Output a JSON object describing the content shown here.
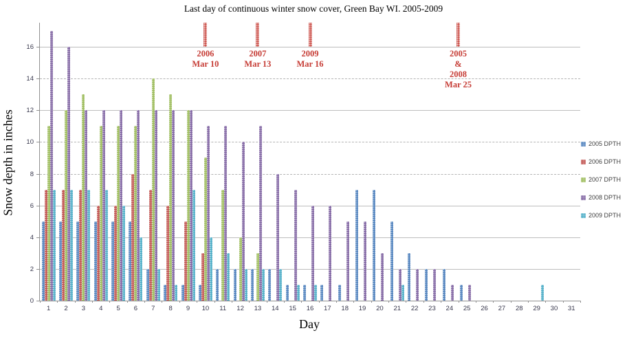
{
  "title": "Last day of continuous winter snow cover, Green Bay WI. 2005-2009",
  "chart_data": {
    "type": "bar",
    "title": "Last day of continuous winter snow cover, Green Bay WI. 2005-2009",
    "xlabel": "Day",
    "ylabel": "Snow depth in inches",
    "days": [
      1,
      2,
      3,
      4,
      5,
      6,
      7,
      8,
      9,
      10,
      11,
      12,
      13,
      14,
      15,
      16,
      17,
      18,
      19,
      20,
      21,
      22,
      23,
      24,
      25,
      26,
      27,
      28,
      29,
      30,
      31
    ],
    "yticks": [
      0,
      2,
      4,
      6,
      8,
      10,
      12,
      14,
      16
    ],
    "ylim": [
      0,
      17.5
    ],
    "grid": true,
    "legend_position": "right",
    "series": [
      {
        "name": "2005 DPTH",
        "color": "#4F81BD",
        "values": [
          5,
          5,
          5,
          5,
          5,
          5,
          2,
          1,
          1,
          1,
          2,
          2,
          2,
          2,
          1,
          1,
          1,
          1,
          7,
          7,
          5,
          3,
          2,
          2,
          1,
          null,
          null,
          null,
          null,
          null,
          null
        ]
      },
      {
        "name": "2006 DPTH",
        "color": "#C0504D",
        "values": [
          7,
          7,
          7,
          6,
          6,
          8,
          7,
          6,
          5,
          3,
          null,
          null,
          null,
          null,
          null,
          null,
          null,
          null,
          null,
          null,
          null,
          null,
          null,
          null,
          null,
          null,
          null,
          null,
          null,
          null,
          null
        ]
      },
      {
        "name": "2007 DPTH",
        "color": "#9BBB59",
        "values": [
          11,
          12,
          13,
          11,
          11,
          11,
          14,
          13,
          12,
          9,
          7,
          4,
          3,
          null,
          null,
          null,
          null,
          null,
          null,
          null,
          null,
          null,
          null,
          null,
          null,
          null,
          null,
          null,
          null,
          null,
          null
        ]
      },
      {
        "name": "2008 DPTH",
        "color": "#8064A2",
        "values": [
          17,
          16,
          12,
          12,
          12,
          12,
          12,
          12,
          12,
          11,
          11,
          10,
          11,
          8,
          7,
          6,
          6,
          5,
          5,
          3,
          2,
          2,
          2,
          1,
          1,
          null,
          null,
          null,
          null,
          null,
          null
        ]
      },
      {
        "name": "2009 DPTH",
        "color": "#4BACC6",
        "values": [
          7,
          7,
          7,
          7,
          6,
          4,
          2,
          1,
          7,
          4,
          3,
          2,
          2,
          2,
          1,
          1,
          null,
          null,
          null,
          null,
          1,
          null,
          null,
          null,
          null,
          null,
          null,
          null,
          1,
          null,
          null
        ]
      }
    ],
    "annotations": [
      {
        "label_lines": [
          "2006",
          "Mar 10"
        ],
        "day": 10,
        "marker_day": 10
      },
      {
        "label_lines": [
          "2007",
          "Mar 13"
        ],
        "day": 13,
        "marker_day": 13
      },
      {
        "label_lines": [
          "2009",
          "Mar 16"
        ],
        "day": 16,
        "marker_day": 16
      },
      {
        "label_lines": [
          "2005",
          "&",
          "2008",
          "Mar 25"
        ],
        "day": 25,
        "marker_day": 24.5
      }
    ],
    "annotation_color": "#C63D36"
  }
}
